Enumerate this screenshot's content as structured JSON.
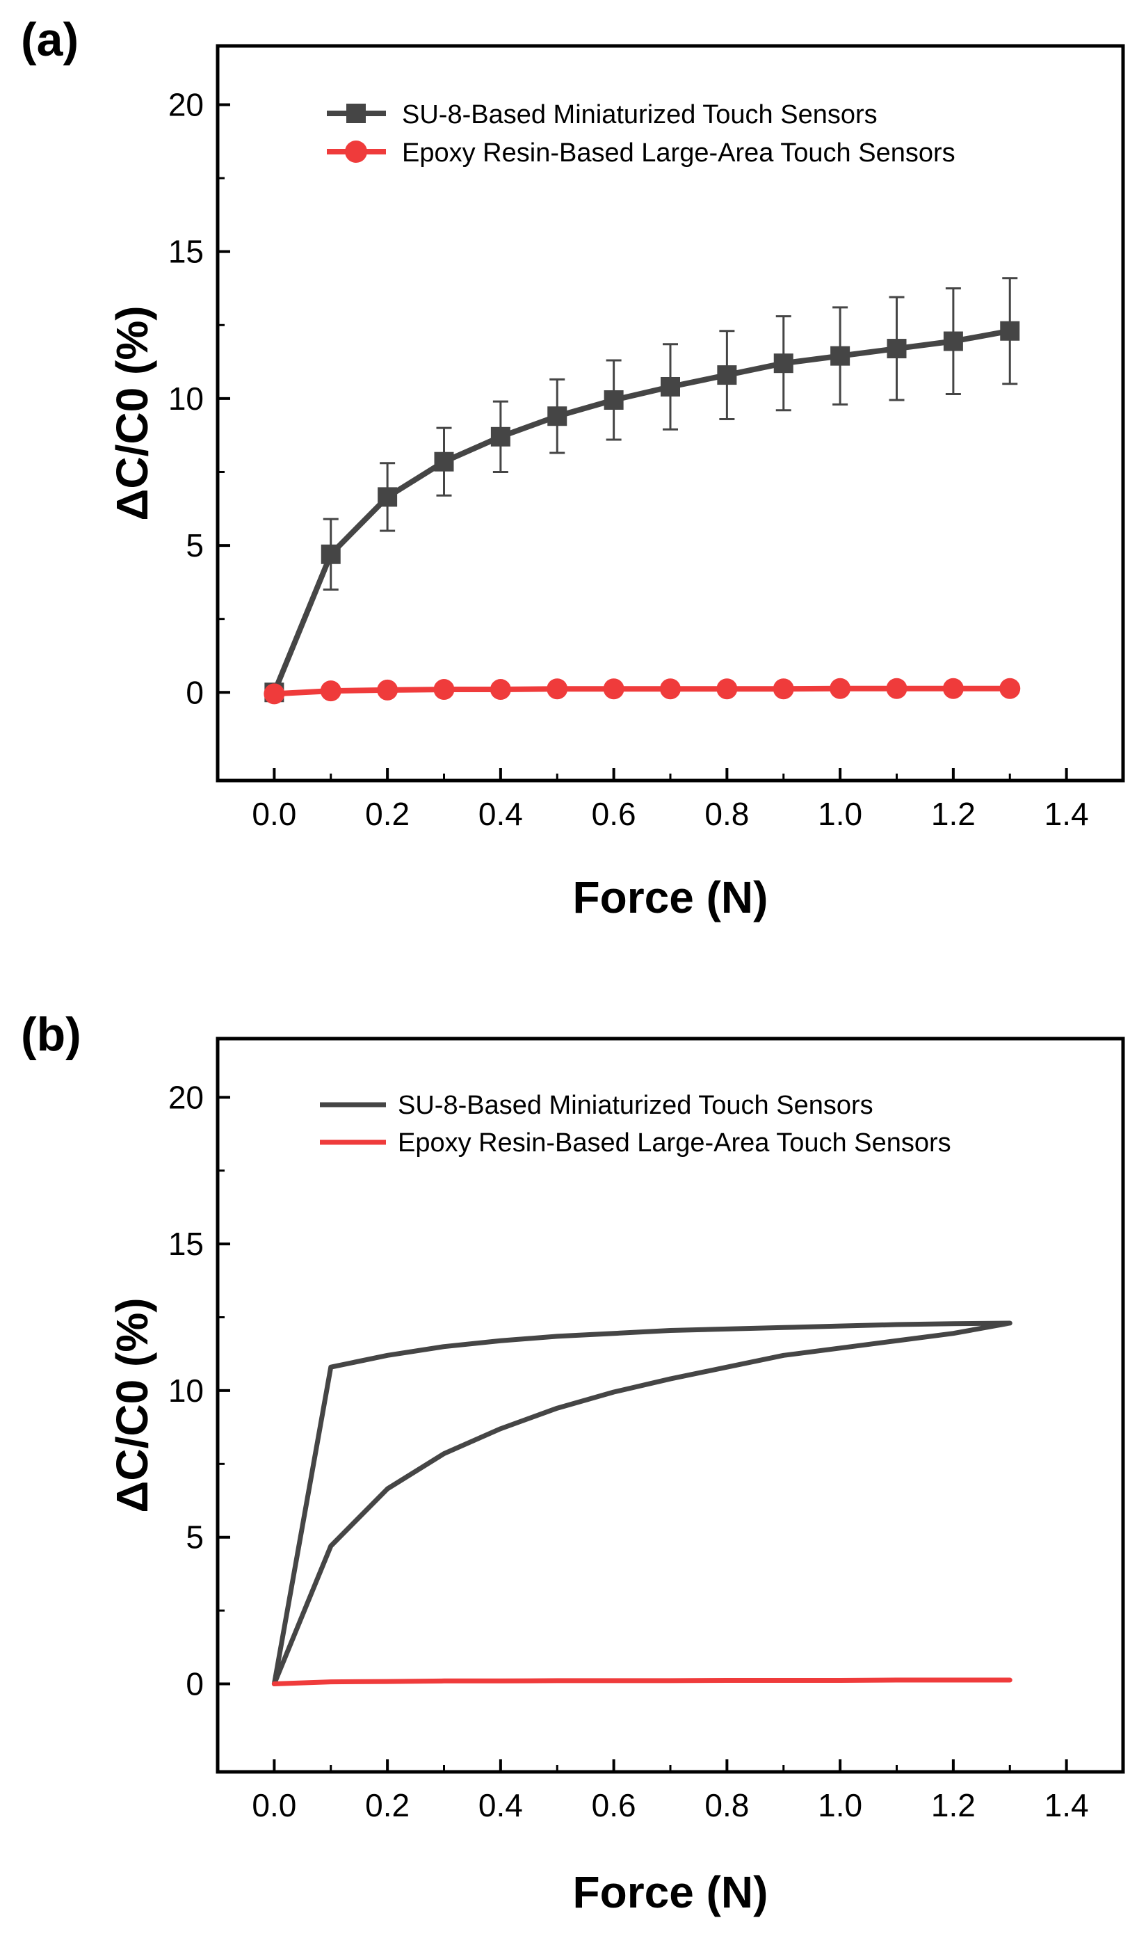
{
  "chart_data": [
    {
      "panel": "(a)",
      "type": "line",
      "xlabel": "Force (N)",
      "ylabel": "ΔC/C0 (%)",
      "xlim": [
        -0.1,
        1.5
      ],
      "ylim": [
        -3,
        22
      ],
      "xticks": [
        0.0,
        0.2,
        0.4,
        0.6,
        0.8,
        1.0,
        1.2,
        1.4
      ],
      "xtick_labels": [
        "0.0",
        "0.2",
        "0.4",
        "0.6",
        "0.8",
        "1.0",
        "1.2",
        "1.4"
      ],
      "yticks": [
        0,
        5,
        10,
        15,
        20
      ],
      "ytick_labels": [
        "0",
        "5",
        "10",
        "15",
        "20"
      ],
      "grid": false,
      "legend_position": "top-left",
      "series": [
        {
          "name": "SU-8-Based Miniaturized Touch Sensors",
          "color": "#454545",
          "marker": "square",
          "x": [
            0.0,
            0.1,
            0.2,
            0.3,
            0.4,
            0.5,
            0.6,
            0.7,
            0.8,
            0.9,
            1.0,
            1.1,
            1.2,
            1.3
          ],
          "y": [
            0.0,
            4.7,
            6.65,
            7.85,
            8.7,
            9.4,
            9.95,
            10.4,
            10.8,
            11.2,
            11.45,
            11.7,
            11.95,
            12.3
          ],
          "error": [
            0.0,
            1.2,
            1.15,
            1.15,
            1.2,
            1.25,
            1.35,
            1.45,
            1.5,
            1.6,
            1.65,
            1.75,
            1.8,
            1.8
          ]
        },
        {
          "name": "Epoxy Resin-Based Large-Area Touch Sensors",
          "color": "#ef3b3b",
          "marker": "circle",
          "x": [
            0.0,
            0.1,
            0.2,
            0.3,
            0.4,
            0.5,
            0.6,
            0.7,
            0.8,
            0.9,
            1.0,
            1.1,
            1.2,
            1.3
          ],
          "y": [
            -0.05,
            0.05,
            0.08,
            0.1,
            0.1,
            0.12,
            0.12,
            0.12,
            0.12,
            0.12,
            0.13,
            0.13,
            0.13,
            0.13
          ]
        }
      ]
    },
    {
      "panel": "(b)",
      "type": "line",
      "xlabel": "Force (N)",
      "ylabel": "ΔC/C0 (%)",
      "xlim": [
        -0.1,
        1.5
      ],
      "ylim": [
        -3,
        22
      ],
      "xticks": [
        0.0,
        0.2,
        0.4,
        0.6,
        0.8,
        1.0,
        1.2,
        1.4
      ],
      "xtick_labels": [
        "0.0",
        "0.2",
        "0.4",
        "0.6",
        "0.8",
        "1.0",
        "1.2",
        "1.4"
      ],
      "yticks": [
        0,
        5,
        10,
        15,
        20
      ],
      "ytick_labels": [
        "0",
        "5",
        "10",
        "15",
        "20"
      ],
      "grid": false,
      "legend_position": "top-left",
      "series": [
        {
          "name": "SU-8-Based Miniaturized Touch Sensors",
          "color": "#454545",
          "marker": "none",
          "x": [
            0.0,
            0.1,
            0.2,
            0.3,
            0.4,
            0.5,
            0.6,
            0.7,
            0.8,
            0.9,
            1.0,
            1.1,
            1.2,
            1.3,
            1.2,
            1.1,
            1.0,
            0.9,
            0.8,
            0.7,
            0.6,
            0.5,
            0.4,
            0.3,
            0.2,
            0.1,
            0.0
          ],
          "y": [
            0.0,
            4.7,
            6.65,
            7.85,
            8.7,
            9.4,
            9.95,
            10.4,
            10.8,
            11.2,
            11.45,
            11.7,
            11.95,
            12.3,
            12.28,
            12.25,
            12.2,
            12.15,
            12.1,
            12.05,
            11.95,
            11.85,
            11.7,
            11.5,
            11.2,
            10.8,
            0.0
          ]
        },
        {
          "name": "Epoxy Resin-Based Large-Area Touch Sensors",
          "color": "#ef3b3b",
          "marker": "none",
          "x": [
            0.0,
            0.1,
            0.2,
            0.3,
            0.4,
            0.5,
            0.6,
            0.7,
            0.8,
            0.9,
            1.0,
            1.1,
            1.2,
            1.3
          ],
          "y": [
            0.0,
            0.07,
            0.08,
            0.1,
            0.1,
            0.11,
            0.11,
            0.11,
            0.12,
            0.12,
            0.12,
            0.13,
            0.13,
            0.13
          ]
        }
      ]
    }
  ]
}
